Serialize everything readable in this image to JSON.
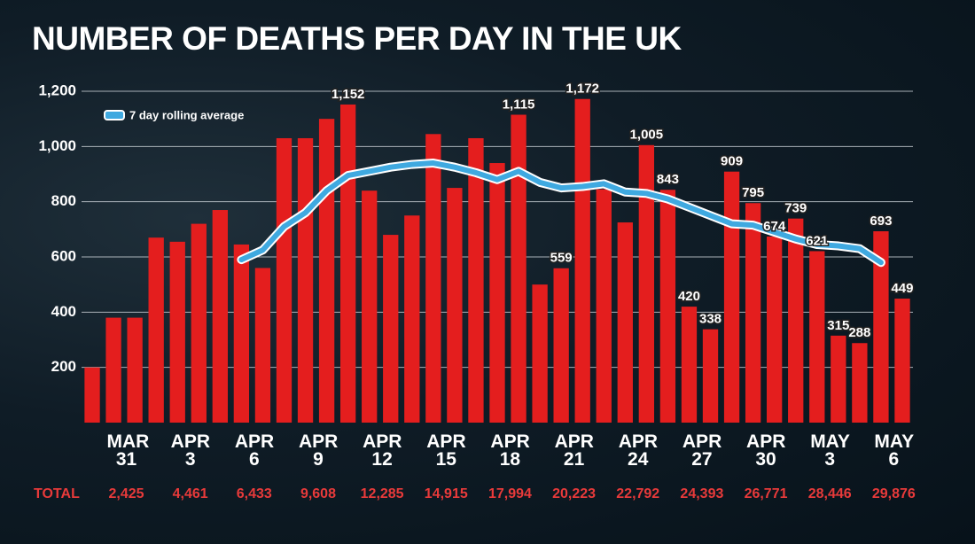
{
  "chart_data": {
    "type": "bar",
    "title": "NUMBER OF DEATHS PER DAY IN THE UK",
    "categories": [
      null,
      "MAR 31",
      null,
      null,
      "APR 3",
      null,
      null,
      "APR 6",
      null,
      null,
      "APR 9",
      null,
      null,
      "APR 12",
      null,
      null,
      "APR 15",
      null,
      null,
      "APR 18",
      null,
      null,
      "APR 21",
      null,
      null,
      "APR 24",
      null,
      null,
      "APR 27",
      null,
      null,
      "APR 30",
      null,
      null,
      "MAY 3",
      null,
      null,
      "MAY 6",
      null
    ],
    "values": [
      200,
      380,
      380,
      670,
      655,
      720,
      770,
      645,
      560,
      1030,
      1030,
      1100,
      1152,
      840,
      680,
      750,
      1045,
      850,
      1030,
      940,
      1115,
      500,
      559,
      1172,
      845,
      725,
      1005,
      843,
      420,
      338,
      909,
      795,
      674,
      739,
      621,
      315,
      288,
      693,
      449
    ],
    "value_labels": [
      null,
      null,
      null,
      null,
      null,
      null,
      null,
      null,
      null,
      null,
      null,
      null,
      "1,152",
      null,
      null,
      null,
      null,
      null,
      null,
      null,
      "1,115",
      null,
      "559",
      "1,172",
      null,
      null,
      "1,005",
      "843",
      "420",
      "338",
      "909",
      "795",
      "674",
      "739",
      "621",
      "315",
      "288",
      "693",
      "449"
    ],
    "color": "#e41e1e",
    "line": {
      "name": "7 day rolling average",
      "color": "#3fa9e0",
      "values": [
        null,
        null,
        null,
        null,
        null,
        null,
        null,
        590,
        625,
        710,
        760,
        840,
        895,
        910,
        925,
        935,
        940,
        925,
        905,
        880,
        910,
        870,
        850,
        855,
        865,
        835,
        830,
        810,
        780,
        750,
        720,
        715,
        690,
        665,
        645,
        640,
        630,
        580,
        null
      ]
    },
    "ylim": [
      0,
      1200
    ],
    "yticks": [
      200,
      400,
      600,
      800,
      {
        "value": 1000,
        "label": "1,000"
      },
      {
        "value": 1200,
        "label": "1,200"
      }
    ],
    "grid": true,
    "totals": {
      "label": "TOTAL",
      "values": [
        2425,
        4461,
        6433,
        9608,
        12285,
        14915,
        17994,
        20223,
        22792,
        24393,
        26771,
        28446,
        29876
      ],
      "value_labels": [
        "2,425",
        "4,461",
        "6,433",
        "9,608",
        "12,285",
        "14,915",
        "17,994",
        "20,223",
        "22,792",
        "24,393",
        "26,771",
        "28,446",
        "29,876"
      ]
    }
  }
}
